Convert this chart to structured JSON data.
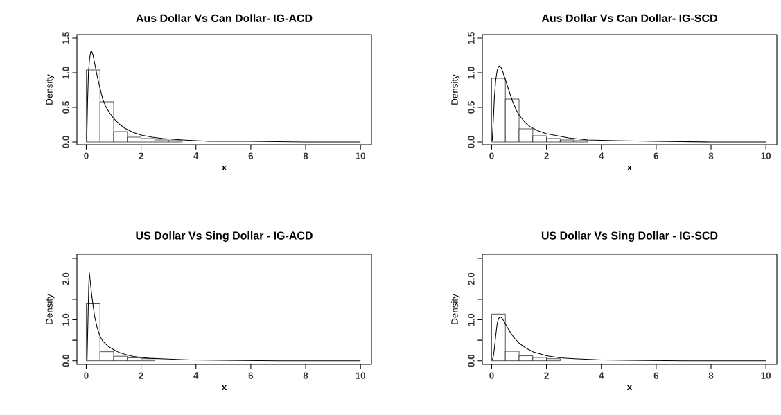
{
  "chart_data": [
    {
      "type": "histogram",
      "title": "Aus Dollar Vs Can Dollar- IG-ACD",
      "xlabel": "x",
      "ylabel": "Density",
      "color": "#000000",
      "bins": [
        0,
        0.5,
        1,
        1.5,
        2,
        2.5,
        3,
        3.5
      ],
      "values": [
        1.04,
        0.58,
        0.15,
        0.07,
        0.05,
        0.03,
        0.02
      ],
      "series": [
        {
          "type": "line",
          "color": "#000000",
          "x": [
            0.02,
            0.05,
            0.08,
            0.12,
            0.16,
            0.2,
            0.25,
            0.3,
            0.35,
            0.4,
            0.5,
            0.6,
            0.7,
            0.85,
            1,
            1.2,
            1.4,
            1.7,
            2,
            2.4,
            2.8,
            3.5,
            4.5,
            6,
            8,
            10
          ],
          "values": [
            0.05,
            0.6,
            1.0,
            1.2,
            1.3,
            1.31,
            1.25,
            1.15,
            1.05,
            0.95,
            0.78,
            0.62,
            0.52,
            0.42,
            0.34,
            0.26,
            0.2,
            0.14,
            0.1,
            0.07,
            0.05,
            0.03,
            0.01,
            0.01,
            0,
            0
          ]
        }
      ],
      "xlim": [
        -0.34,
        10.4
      ],
      "xticks": [
        0,
        2,
        4,
        6,
        8,
        10
      ],
      "ylim": [
        -0.04,
        1.55
      ],
      "yticks": [
        {
          "value": 0,
          "label": "0.0"
        },
        {
          "value": 0.5,
          "label": "0.5"
        },
        {
          "value": 1,
          "label": "1.0"
        },
        {
          "value": 1.5,
          "label": "1.5"
        }
      ]
    },
    {
      "type": "histogram",
      "title": "Aus Dollar Vs Can Dollar- IG-SCD",
      "xlabel": "x",
      "ylabel": "Density",
      "color": "#000000",
      "bins": [
        0,
        0.5,
        1,
        1.5,
        2,
        2.5,
        3,
        3.5
      ],
      "values": [
        0.92,
        0.62,
        0.19,
        0.09,
        0.05,
        0.03,
        0.02
      ],
      "series": [
        {
          "type": "line",
          "color": "#000000",
          "x": [
            0.02,
            0.06,
            0.1,
            0.15,
            0.2,
            0.25,
            0.3,
            0.35,
            0.4,
            0.5,
            0.6,
            0.75,
            0.9,
            1,
            1.2,
            1.4,
            1.7,
            2,
            2.4,
            2.8,
            3.5,
            4.5,
            6,
            8,
            10
          ],
          "values": [
            0.02,
            0.3,
            0.65,
            0.9,
            1.03,
            1.09,
            1.1,
            1.07,
            1.02,
            0.9,
            0.78,
            0.6,
            0.46,
            0.39,
            0.29,
            0.22,
            0.16,
            0.12,
            0.09,
            0.06,
            0.03,
            0.02,
            0.01,
            0,
            0
          ]
        }
      ],
      "xlim": [
        -0.34,
        10.4
      ],
      "xticks": [
        0,
        2,
        4,
        6,
        8,
        10
      ],
      "ylim": [
        -0.04,
        1.55
      ],
      "yticks": [
        {
          "value": 0,
          "label": "0.0"
        },
        {
          "value": 0.5,
          "label": "0.5"
        },
        {
          "value": 1,
          "label": "1.0"
        },
        {
          "value": 1.5,
          "label": "1.5"
        }
      ]
    },
    {
      "type": "histogram",
      "title": "US Dollar Vs Sing Dollar - IG-ACD",
      "xlabel": "x",
      "ylabel": "Density",
      "color": "#000000",
      "bins": [
        0,
        0.5,
        1,
        1.5,
        2,
        2.5
      ],
      "values": [
        1.39,
        0.22,
        0.11,
        0.07,
        0.05
      ],
      "series": [
        {
          "type": "line",
          "color": "#000000",
          "x": [
            0.03,
            0.06,
            0.09,
            0.11,
            0.13,
            0.16,
            0.2,
            0.25,
            0.3,
            0.4,
            0.5,
            0.6,
            0.8,
            1,
            1.2,
            1.5,
            1.7,
            2,
            2.3,
            3,
            3.8,
            5,
            7,
            10
          ],
          "values": [
            0.02,
            0.9,
            1.8,
            2.15,
            2.05,
            1.85,
            1.6,
            1.35,
            1.1,
            0.8,
            0.6,
            0.48,
            0.35,
            0.27,
            0.2,
            0.14,
            0.11,
            0.08,
            0.06,
            0.04,
            0.02,
            0.01,
            0,
            0
          ]
        }
      ],
      "xlim": [
        -0.34,
        10.4
      ],
      "xticks": [
        0,
        2,
        4,
        6,
        8,
        10
      ],
      "ylim": [
        -0.09,
        2.6
      ],
      "yticks": [
        {
          "value": 0,
          "label": "0.0"
        },
        {
          "value": 0.5,
          "label": null
        },
        {
          "value": 1,
          "label": "1.0"
        },
        {
          "value": 1.5,
          "label": null
        },
        {
          "value": 2,
          "label": "2.0"
        },
        {
          "value": 2.5,
          "label": null
        }
      ]
    },
    {
      "type": "histogram",
      "title": "US Dollar Vs Sing Dollar - IG-SCD",
      "xlabel": "x",
      "ylabel": "Density",
      "color": "#000000",
      "bins": [
        0,
        0.5,
        1,
        1.5,
        2,
        2.5
      ],
      "values": [
        1.14,
        0.23,
        0.12,
        0.08,
        0.05
      ],
      "series": [
        {
          "type": "line",
          "color": "#000000",
          "x": [
            0.02,
            0.06,
            0.1,
            0.15,
            0.2,
            0.25,
            0.3,
            0.35,
            0.4,
            0.5,
            0.6,
            0.7,
            0.85,
            1,
            1.2,
            1.5,
            2,
            2.5,
            3,
            4,
            5,
            7,
            10
          ],
          "values": [
            0.01,
            0.1,
            0.3,
            0.62,
            0.9,
            1.03,
            1.07,
            1.06,
            1.02,
            0.9,
            0.78,
            0.67,
            0.54,
            0.43,
            0.33,
            0.22,
            0.12,
            0.07,
            0.05,
            0.02,
            0.01,
            0,
            0
          ]
        }
      ],
      "xlim": [
        -0.34,
        10.4
      ],
      "xticks": [
        0,
        2,
        4,
        6,
        8,
        10
      ],
      "ylim": [
        -0.09,
        2.6
      ],
      "yticks": [
        {
          "value": 0,
          "label": "0.0"
        },
        {
          "value": 0.5,
          "label": null
        },
        {
          "value": 1,
          "label": "1.0"
        },
        {
          "value": 1.5,
          "label": null
        },
        {
          "value": 2,
          "label": "2.0"
        },
        {
          "value": 2.5,
          "label": null
        }
      ]
    }
  ]
}
